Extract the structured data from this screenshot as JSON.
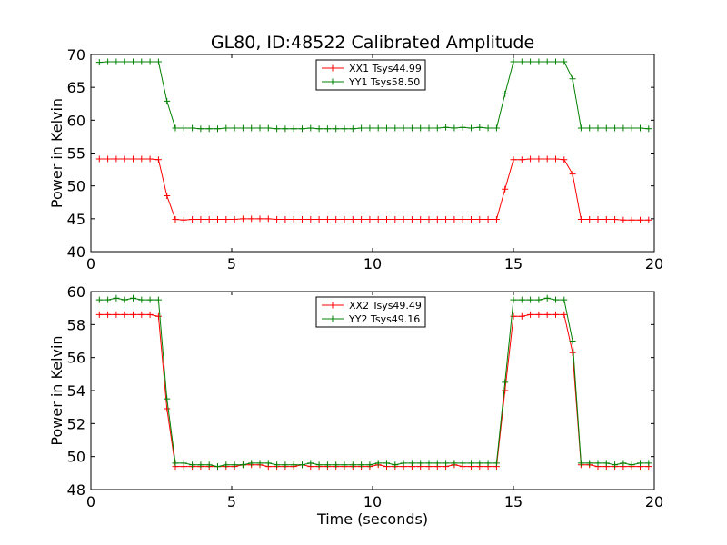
{
  "title": "GL80, ID:48522 Calibrated Amplitude",
  "chart_data": [
    {
      "type": "line",
      "xlabel": "",
      "ylabel": "Power in Kelvin",
      "xlim": [
        0,
        20
      ],
      "ylim": [
        40,
        70
      ],
      "xticks": [
        0,
        5,
        10,
        15,
        20
      ],
      "yticks": [
        40,
        45,
        50,
        55,
        60,
        65,
        70
      ],
      "grid": false,
      "legend_position": "top-center",
      "x": [
        0.3,
        0.6,
        0.9,
        1.2,
        1.5,
        1.8,
        2.1,
        2.4,
        2.7,
        3.0,
        3.3,
        3.6,
        3.9,
        4.2,
        4.5,
        4.8,
        5.1,
        5.4,
        5.7,
        6.0,
        6.3,
        6.6,
        6.9,
        7.2,
        7.5,
        7.8,
        8.1,
        8.4,
        8.7,
        9.0,
        9.3,
        9.6,
        9.9,
        10.2,
        10.5,
        10.8,
        11.1,
        11.4,
        11.7,
        12.0,
        12.3,
        12.6,
        12.9,
        13.2,
        13.5,
        13.8,
        14.1,
        14.4,
        14.7,
        15.0,
        15.3,
        15.6,
        15.9,
        16.2,
        16.5,
        16.8,
        17.1,
        17.4,
        17.7,
        18.0,
        18.3,
        18.6,
        18.9,
        19.2,
        19.5,
        19.8
      ],
      "series": [
        {
          "name": "XX1 Tsys44.99",
          "color": "#ff0000",
          "values": [
            54.1,
            54.1,
            54.1,
            54.1,
            54.1,
            54.1,
            54.1,
            54.0,
            48.5,
            44.9,
            44.8,
            44.9,
            44.9,
            44.9,
            44.9,
            44.9,
            44.9,
            45.0,
            45.0,
            45.0,
            45.0,
            44.9,
            44.9,
            44.9,
            44.9,
            44.9,
            44.9,
            44.9,
            44.9,
            44.9,
            44.9,
            44.9,
            44.9,
            44.9,
            44.9,
            44.9,
            44.9,
            44.9,
            44.9,
            44.9,
            44.9,
            44.9,
            44.9,
            44.9,
            44.9,
            44.9,
            44.9,
            44.9,
            49.5,
            54.0,
            54.0,
            54.1,
            54.1,
            54.1,
            54.1,
            54.0,
            51.8,
            44.9,
            44.9,
            44.9,
            44.9,
            44.9,
            44.8,
            44.8,
            44.8,
            44.8
          ]
        },
        {
          "name": "YY1 Tsys58.50",
          "color": "#008000",
          "values": [
            68.8,
            68.9,
            68.9,
            68.9,
            68.9,
            68.9,
            68.9,
            68.9,
            62.9,
            58.8,
            58.8,
            58.8,
            58.7,
            58.7,
            58.7,
            58.8,
            58.8,
            58.8,
            58.8,
            58.8,
            58.8,
            58.7,
            58.7,
            58.7,
            58.7,
            58.8,
            58.7,
            58.7,
            58.7,
            58.7,
            58.7,
            58.8,
            58.8,
            58.8,
            58.8,
            58.8,
            58.8,
            58.8,
            58.8,
            58.8,
            58.8,
            58.9,
            58.8,
            58.9,
            58.8,
            58.9,
            58.8,
            58.8,
            64.0,
            68.9,
            68.9,
            68.9,
            68.9,
            68.9,
            68.9,
            68.9,
            66.3,
            58.8,
            58.8,
            58.8,
            58.8,
            58.8,
            58.8,
            58.8,
            58.8,
            58.7
          ]
        }
      ]
    },
    {
      "type": "line",
      "xlabel": "Time (seconds)",
      "ylabel": "Power in Kelvin",
      "xlim": [
        0,
        20
      ],
      "ylim": [
        48,
        60
      ],
      "xticks": [
        0,
        5,
        10,
        15,
        20
      ],
      "yticks": [
        48,
        50,
        52,
        54,
        56,
        58,
        60
      ],
      "grid": false,
      "legend_position": "top-center",
      "x": [
        0.3,
        0.6,
        0.9,
        1.2,
        1.5,
        1.8,
        2.1,
        2.4,
        2.7,
        3.0,
        3.3,
        3.6,
        3.9,
        4.2,
        4.5,
        4.8,
        5.1,
        5.4,
        5.7,
        6.0,
        6.3,
        6.6,
        6.9,
        7.2,
        7.5,
        7.8,
        8.1,
        8.4,
        8.7,
        9.0,
        9.3,
        9.6,
        9.9,
        10.2,
        10.5,
        10.8,
        11.1,
        11.4,
        11.7,
        12.0,
        12.3,
        12.6,
        12.9,
        13.2,
        13.5,
        13.8,
        14.1,
        14.4,
        14.7,
        15.0,
        15.3,
        15.6,
        15.9,
        16.2,
        16.5,
        16.8,
        17.1,
        17.4,
        17.7,
        18.0,
        18.3,
        18.6,
        18.9,
        19.2,
        19.5,
        19.8
      ],
      "series": [
        {
          "name": "XX2 Tsys49.49",
          "color": "#ff0000",
          "values": [
            58.6,
            58.6,
            58.6,
            58.6,
            58.6,
            58.6,
            58.6,
            58.5,
            52.9,
            49.4,
            49.4,
            49.4,
            49.4,
            49.4,
            49.4,
            49.4,
            49.4,
            49.5,
            49.5,
            49.5,
            49.4,
            49.4,
            49.4,
            49.4,
            49.5,
            49.4,
            49.4,
            49.4,
            49.4,
            49.4,
            49.4,
            49.4,
            49.4,
            49.5,
            49.4,
            49.4,
            49.4,
            49.4,
            49.4,
            49.4,
            49.4,
            49.4,
            49.5,
            49.4,
            49.4,
            49.4,
            49.4,
            49.4,
            54.0,
            58.5,
            58.5,
            58.6,
            58.6,
            58.6,
            58.6,
            58.6,
            56.3,
            49.5,
            49.5,
            49.4,
            49.4,
            49.4,
            49.4,
            49.4,
            49.4,
            49.4
          ]
        },
        {
          "name": "YY2 Tsys49.16",
          "color": "#008000",
          "values": [
            59.5,
            59.5,
            59.6,
            59.5,
            59.6,
            59.5,
            59.5,
            59.5,
            53.5,
            49.6,
            49.6,
            49.5,
            49.5,
            49.5,
            49.4,
            49.5,
            49.5,
            49.5,
            49.6,
            49.6,
            49.6,
            49.5,
            49.5,
            49.5,
            49.5,
            49.6,
            49.5,
            49.5,
            49.5,
            49.5,
            49.5,
            49.5,
            49.5,
            49.6,
            49.6,
            49.5,
            49.6,
            49.6,
            49.6,
            49.6,
            49.6,
            49.6,
            49.6,
            49.6,
            49.6,
            49.6,
            49.6,
            49.6,
            54.5,
            59.5,
            59.5,
            59.5,
            59.5,
            59.6,
            59.5,
            59.5,
            57.0,
            49.6,
            49.6,
            49.6,
            49.6,
            49.5,
            49.6,
            49.5,
            49.6,
            49.6
          ]
        }
      ]
    }
  ]
}
